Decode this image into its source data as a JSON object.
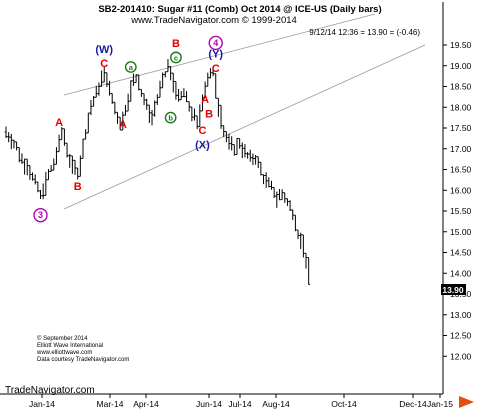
{
  "header": {
    "title": "SB2-201410:  Sugar #11 (Comb) Oct 2014 @ ICE-US  (Daily bars)",
    "url": "www.TradeNavigator.com © 1999-2014",
    "last_price": "9/12/14 12:36 = 13.90 = (-0.46)"
  },
  "footer": {
    "copyright_lines": [
      "© September 2014",
      "Elliott Wave International",
      "www.elliottwave.com",
      "Data courtesy TradeNavigator.com"
    ],
    "watermark": "TradeNavigator.com"
  },
  "colors": {
    "wave_red": "#e60000",
    "wave_blue": "#1a1aa6",
    "wave_green": "#1a7a1a",
    "wave_purple": "#b300b3",
    "arrow_red": "#e05010",
    "channel": "#999999"
  },
  "chart_data": {
    "type": "ohlc-bar",
    "title": "SB2-201410:  Sugar #11 (Comb) Oct 2014 @ ICE-US  (Daily bars)",
    "y_ticks": [
      "19.50",
      "19.00",
      "18.50",
      "18.00",
      "17.50",
      "17.00",
      "16.50",
      "16.00",
      "15.50",
      "15.00",
      "14.50",
      "14.00",
      "13.50",
      "13.00",
      "12.50",
      "12.00"
    ],
    "ylim": [
      11.5,
      20.1
    ],
    "x_ticks": [
      "Jan-14",
      "Mar-14",
      "Apr-14",
      "Jun-14",
      "Jul-14",
      "Aug-14",
      "Oct-14",
      "Dec-14",
      "Jan-15"
    ],
    "last_value_label": "13.90",
    "path": [
      [
        0,
        17.4
      ],
      [
        2,
        17.25
      ],
      [
        4,
        17.0
      ],
      [
        6,
        16.75
      ],
      [
        8,
        16.55
      ],
      [
        10,
        16.3
      ],
      [
        12,
        16.05
      ],
      [
        13,
        15.85
      ],
      [
        15,
        16.25
      ],
      [
        17,
        16.5
      ],
      [
        19,
        16.9
      ],
      [
        21,
        17.4
      ],
      [
        23,
        17.0
      ],
      [
        25,
        16.5
      ],
      [
        27,
        16.45
      ],
      [
        29,
        17.1
      ],
      [
        31,
        17.8
      ],
      [
        33,
        18.2
      ],
      [
        35,
        18.5
      ],
      [
        37,
        18.85
      ],
      [
        39,
        18.4
      ],
      [
        41,
        17.9
      ],
      [
        43,
        17.6
      ],
      [
        45,
        18.0
      ],
      [
        47,
        18.5
      ],
      [
        49,
        18.75
      ],
      [
        51,
        18.35
      ],
      [
        53,
        18.0
      ],
      [
        55,
        17.75
      ],
      [
        57,
        18.2
      ],
      [
        59,
        18.6
      ],
      [
        61,
        19.0
      ],
      [
        63,
        18.55
      ],
      [
        65,
        18.2
      ],
      [
        67,
        18.35
      ],
      [
        69,
        18.0
      ],
      [
        71,
        17.75
      ],
      [
        72,
        17.5
      ],
      [
        74,
        18.3
      ],
      [
        76,
        18.8
      ],
      [
        78,
        18.75
      ],
      [
        80,
        18.0
      ],
      [
        82,
        17.4
      ],
      [
        84,
        17.1
      ],
      [
        86,
        17.0
      ],
      [
        88,
        17.15
      ],
      [
        90,
        16.9
      ],
      [
        92,
        16.75
      ],
      [
        94,
        16.8
      ],
      [
        96,
        16.45
      ],
      [
        98,
        16.2
      ],
      [
        100,
        16.05
      ],
      [
        102,
        15.8
      ],
      [
        104,
        15.95
      ],
      [
        106,
        15.7
      ],
      [
        108,
        15.5
      ],
      [
        110,
        15.0
      ],
      [
        112,
        14.5
      ],
      [
        113,
        14.2
      ],
      [
        114,
        13.9
      ]
    ],
    "labels": [
      {
        "text": "A",
        "style": "red",
        "price": 17.65,
        "bar": 20
      },
      {
        "text": "B",
        "style": "red",
        "price": 16.1,
        "bar": 27
      },
      {
        "text": "3",
        "style": "circle-purple",
        "price": 15.4,
        "bar": 13
      },
      {
        "text": "(W)",
        "style": "blue",
        "price": 19.4,
        "bar": 37
      },
      {
        "text": "C",
        "style": "red",
        "price": 19.07,
        "bar": 37
      },
      {
        "text": "a",
        "style": "circle-green",
        "price": 18.97,
        "bar": 47
      },
      {
        "text": "A",
        "style": "red",
        "price": 17.6,
        "bar": 44
      },
      {
        "text": "b",
        "style": "circle-green",
        "price": 17.75,
        "bar": 62
      },
      {
        "text": "c",
        "style": "circle-green",
        "price": 19.2,
        "bar": 64
      },
      {
        "text": "B",
        "style": "red",
        "price": 19.55,
        "bar": 64
      },
      {
        "text": "4",
        "style": "circle-purple",
        "price": 19.55,
        "bar": 79
      },
      {
        "text": "(Y)",
        "style": "blue",
        "price": 19.3,
        "bar": 79
      },
      {
        "text": "C",
        "style": "red",
        "price": 18.95,
        "bar": 79
      },
      {
        "text": "A",
        "style": "red",
        "price": 18.2,
        "bar": 75
      },
      {
        "text": "B",
        "style": "red",
        "price": 17.85,
        "bar": 76.5
      },
      {
        "text": "C",
        "style": "red",
        "price": 17.45,
        "bar": 74
      },
      {
        "text": "(X)",
        "style": "blue",
        "price": 17.1,
        "bar": 74
      }
    ]
  }
}
